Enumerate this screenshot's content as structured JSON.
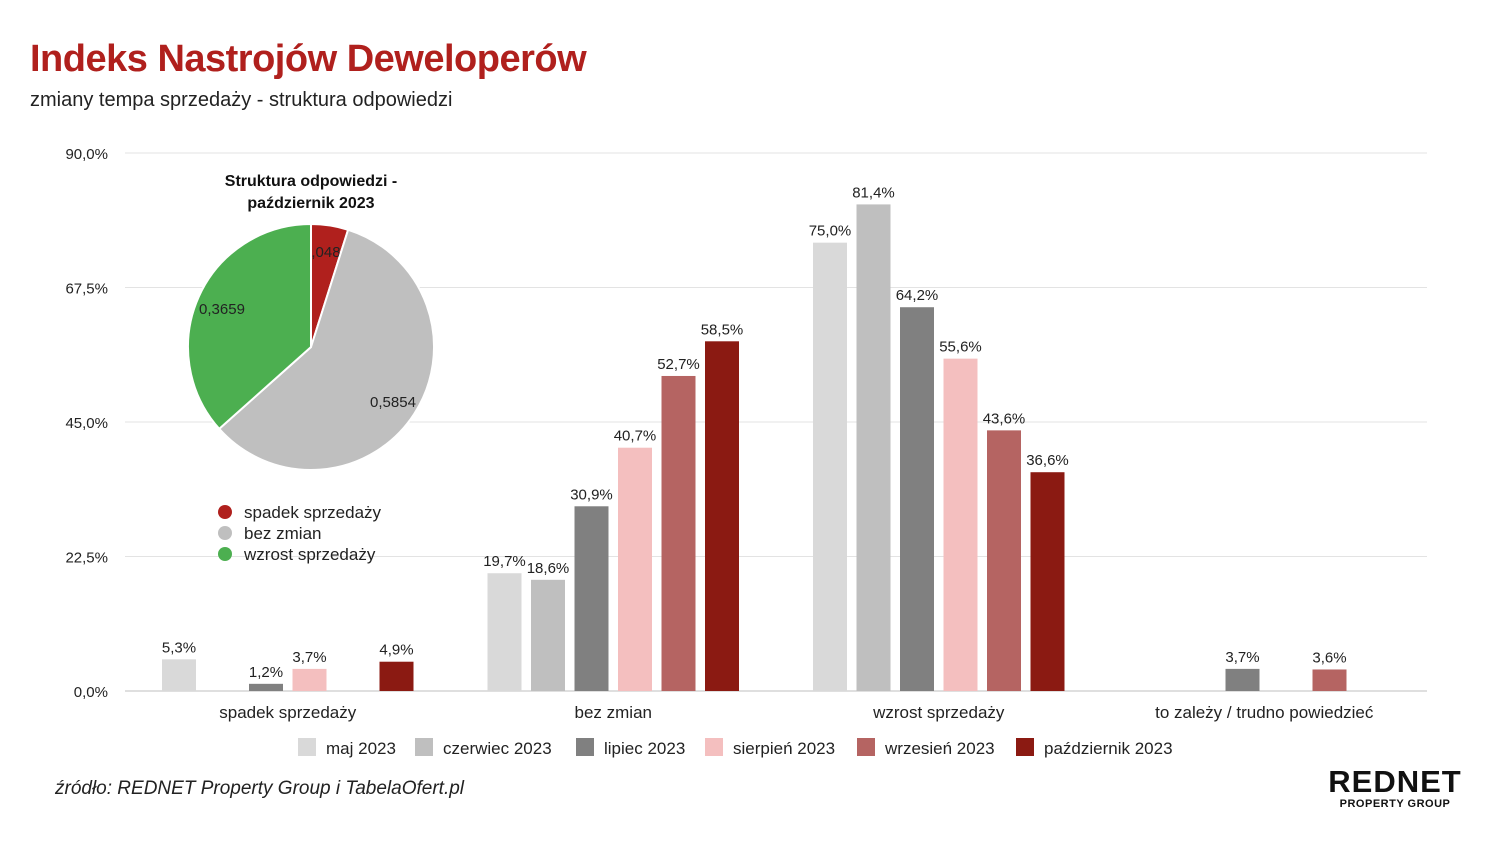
{
  "header": {
    "title": "Indeks Nastrojów Deweloperów",
    "subtitle": "zmiany tempa sprzedaży - struktura odpowiedzi"
  },
  "footer": {
    "source": "źródło: REDNET Property Group i TabelaOfert.pl",
    "logo_main": "REDNET",
    "logo_sub": "PROPERTY GROUP"
  },
  "chart_data": [
    {
      "type": "bar",
      "ylim": [
        0,
        90
      ],
      "y_ticks": [
        "0,0%",
        "22,5%",
        "45,0%",
        "67,5%",
        "90,0%"
      ],
      "grid": true,
      "legend_position": "bottom",
      "categories": [
        "spadek sprzedaży",
        "bez zmian",
        "wzrost sprzedaży",
        "to zależy / trudno powiedzieć"
      ],
      "series": [
        {
          "name": "maj 2023",
          "color": "#d9d9d9",
          "values": [
            5.3,
            19.7,
            75.0,
            null
          ],
          "labels": [
            "5,3%",
            "19,7%",
            "75,0%",
            ""
          ]
        },
        {
          "name": "czerwiec 2023",
          "color": "#bfbfbf",
          "values": [
            null,
            18.6,
            81.4,
            null
          ],
          "labels": [
            "",
            "18,6%",
            "81,4%",
            ""
          ]
        },
        {
          "name": "lipiec 2023",
          "color": "#808080",
          "values": [
            1.2,
            30.9,
            64.2,
            3.7
          ],
          "labels": [
            "1,2%",
            "30,9%",
            "64,2%",
            "3,7%"
          ]
        },
        {
          "name": "sierpień 2023",
          "color": "#f4bfbf",
          "values": [
            3.7,
            40.7,
            55.6,
            null
          ],
          "labels": [
            "3,7%",
            "40,7%",
            "55,6%",
            ""
          ]
        },
        {
          "name": "wrzesień 2023",
          "color": "#b56462",
          "values": [
            null,
            52.7,
            43.6,
            3.6
          ],
          "labels": [
            "",
            "52,7%",
            "43,6%",
            "3,6%"
          ]
        },
        {
          "name": "październik 2023",
          "color": "#8b1a12",
          "values": [
            4.9,
            58.5,
            36.6,
            null
          ],
          "labels": [
            "4,9%",
            "58,5%",
            "36,6%",
            ""
          ]
        }
      ]
    },
    {
      "type": "pie",
      "title_line1": "Struktura odpowiedzi -",
      "title_line2": "październik 2023",
      "legend_position": "bottom",
      "slices": [
        {
          "name": "spadek sprzedaży",
          "value": 0.0488,
          "label": "0,0488",
          "color": "#b0201d"
        },
        {
          "name": "bez zmian",
          "value": 0.5854,
          "label": "0,5854",
          "color": "#bfbfbf"
        },
        {
          "name": "wzrost sprzedaży",
          "value": 0.3659,
          "label": "0,3659",
          "color": "#4caf50"
        }
      ]
    }
  ]
}
